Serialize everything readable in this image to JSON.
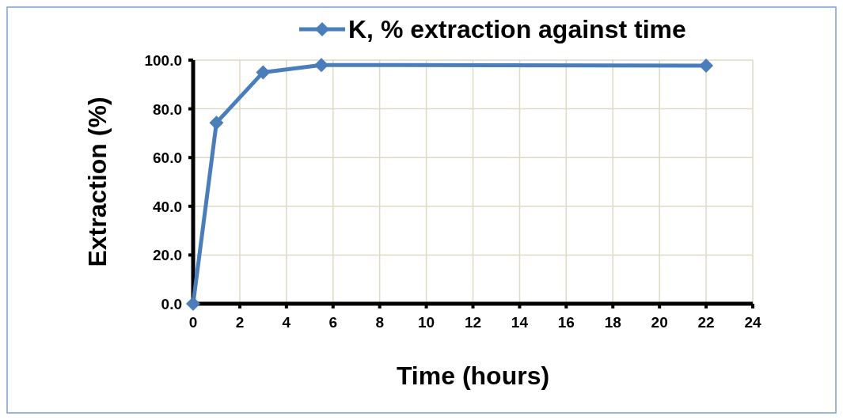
{
  "chart_data": {
    "type": "line",
    "xlabel": "Time (hours)",
    "ylabel": "Extraction (%)",
    "x": [
      0,
      1,
      3,
      5.5,
      22
    ],
    "series": [
      {
        "name": "K, % extraction against time",
        "color": "#4a7ebb",
        "values": [
          0,
          74.3,
          95.0,
          98.0,
          97.7
        ]
      }
    ],
    "xlim": [
      0,
      24
    ],
    "xticks": [
      0,
      2,
      4,
      6,
      8,
      10,
      12,
      14,
      16,
      18,
      20,
      22,
      24
    ],
    "ylim": [
      0,
      100
    ],
    "yticks": [
      {
        "value": 0,
        "label": "0.0"
      },
      {
        "value": 20,
        "label": "20.0"
      },
      {
        "value": 40,
        "label": "40.0"
      },
      {
        "value": 60,
        "label": "60.0"
      },
      {
        "value": 80,
        "label": "80.0"
      },
      {
        "value": 100,
        "label": "100.0"
      }
    ],
    "grid": true,
    "legend": "top",
    "marker": "diamond",
    "line_style": "solid"
  }
}
